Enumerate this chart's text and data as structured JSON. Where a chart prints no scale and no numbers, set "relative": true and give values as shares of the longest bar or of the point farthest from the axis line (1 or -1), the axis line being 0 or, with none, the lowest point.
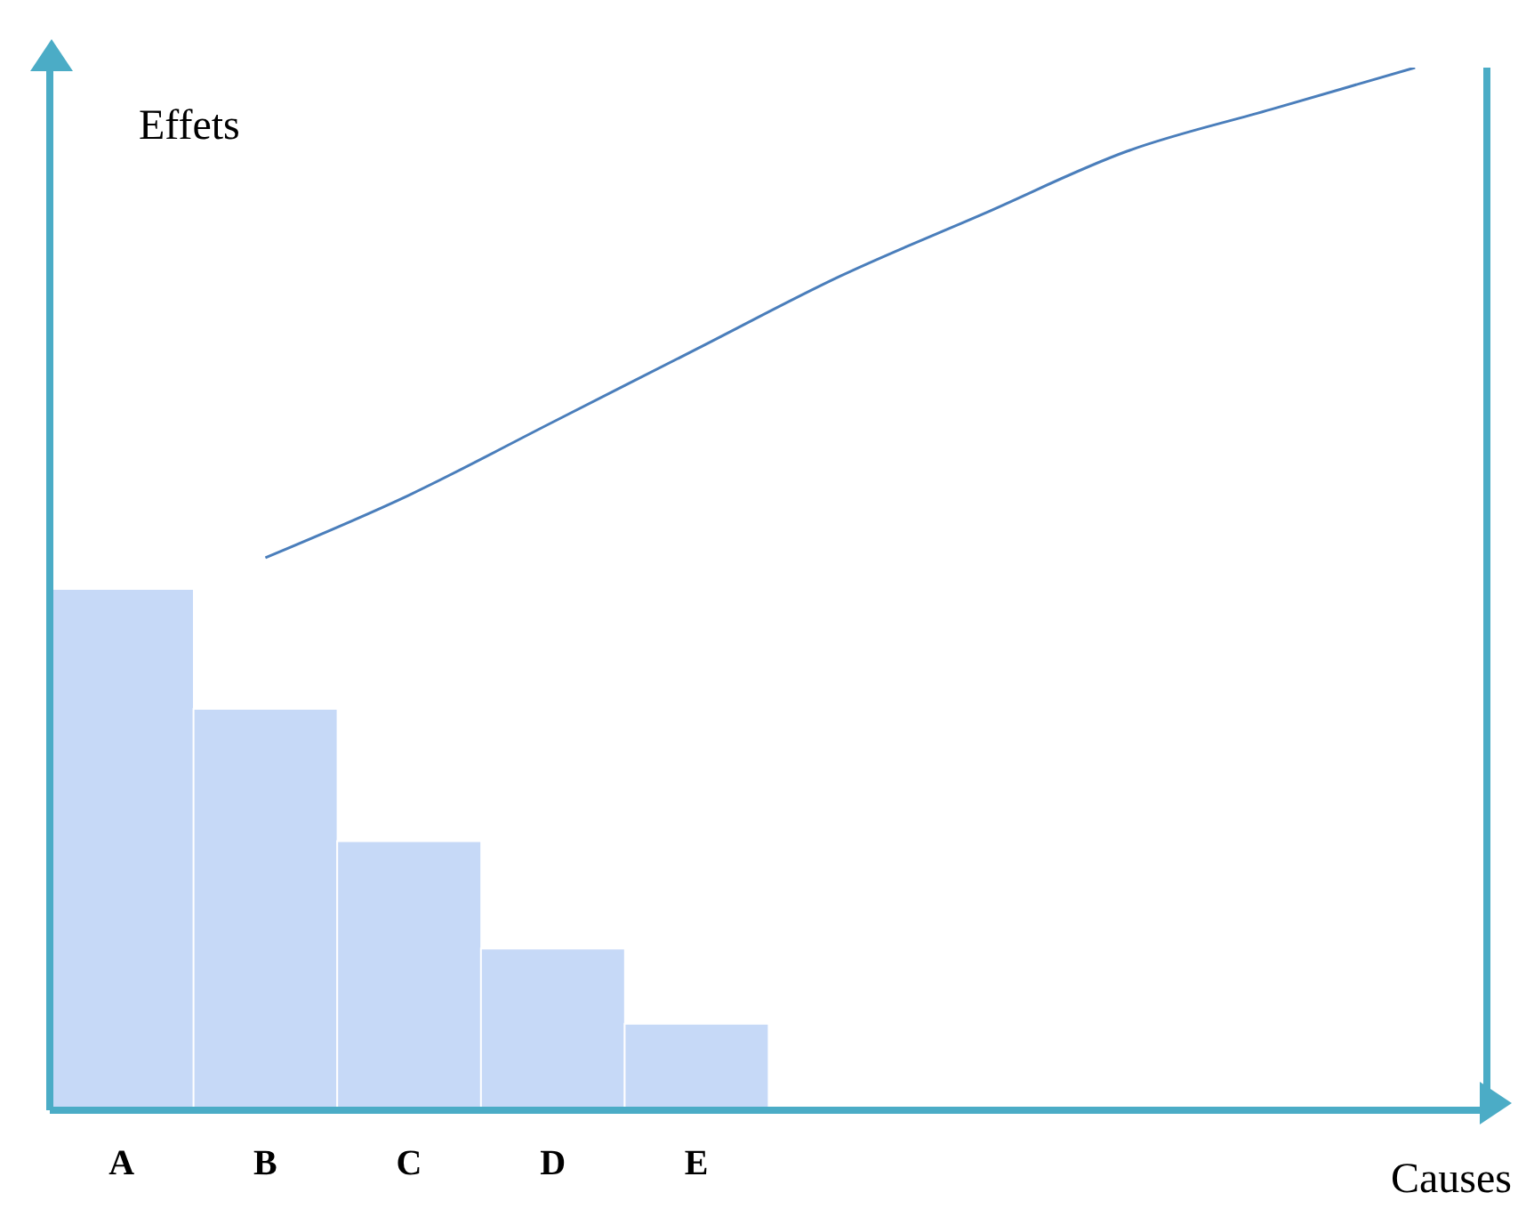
{
  "chart_data": {
    "type": "bar",
    "relative": true,
    "xlabel": "Causes",
    "ylabel": "Effets",
    "categories": [
      "A",
      "B",
      "C",
      "D",
      "E",
      null,
      null,
      null,
      null,
      null
    ],
    "series": [
      {
        "color": "#c6d9f7",
        "values": [
          0.5,
          0.385,
          0.258,
          0.155,
          0.083,
          null,
          null,
          null,
          null,
          null
        ]
      },
      {
        "type": "line",
        "color": "#4a7ebb",
        "values": [
          null,
          0.53,
          0.59,
          0.66,
          0.73,
          0.8,
          0.86,
          0.92,
          0.96,
          1
        ]
      }
    ],
    "grid": false,
    "legend": false,
    "marker": "none",
    "line_style": "solid"
  }
}
